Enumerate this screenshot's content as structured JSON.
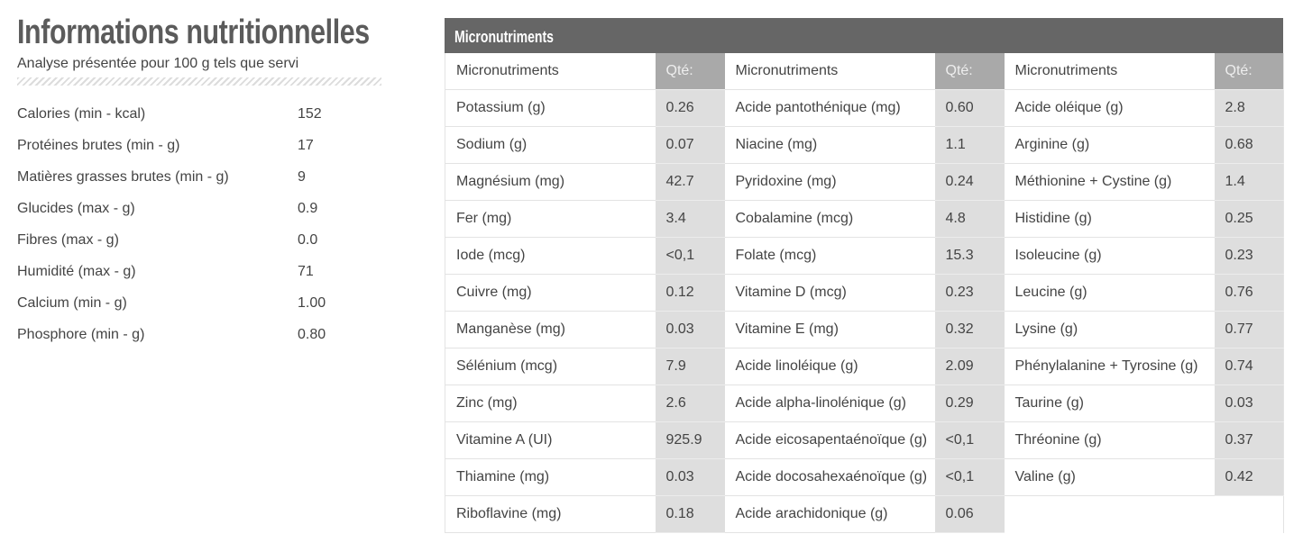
{
  "nutrition": {
    "title": "Informations nutritionnelles",
    "subtitle": "Analyse présentée pour 100 g tels que servi",
    "rows": [
      {
        "label": "Calories (min - kcal)",
        "value": "152"
      },
      {
        "label": "Protéines brutes (min - g)",
        "value": "17"
      },
      {
        "label": "Matières grasses brutes (min - g)",
        "value": "9"
      },
      {
        "label": "Glucides (max - g)",
        "value": "0.9"
      },
      {
        "label": "Fibres (max - g)",
        "value": "0.0"
      },
      {
        "label": "Humidité (max - g)",
        "value": "71"
      },
      {
        "label": "Calcium (min - g)",
        "value": "1.00"
      },
      {
        "label": "Phosphore (min - g)",
        "value": "0.80"
      }
    ]
  },
  "micro": {
    "title": "Micronutriments",
    "columns": [
      {
        "header_label": "Micronutriments",
        "header_qty": "Qté:",
        "rows": [
          {
            "label": "Potassium (g)",
            "value": "0.26"
          },
          {
            "label": "Sodium (g)",
            "value": "0.07"
          },
          {
            "label": "Magnésium (mg)",
            "value": "42.7"
          },
          {
            "label": "Fer (mg)",
            "value": "3.4"
          },
          {
            "label": "Iode (mcg)",
            "value": "<0,1"
          },
          {
            "label": "Cuivre (mg)",
            "value": "0.12"
          },
          {
            "label": "Manganèse (mg)",
            "value": "0.03"
          },
          {
            "label": "Sélénium (mcg)",
            "value": "7.9"
          },
          {
            "label": "Zinc (mg)",
            "value": "2.6"
          },
          {
            "label": "Vitamine A (UI)",
            "value": "925.9"
          },
          {
            "label": "Thiamine (mg)",
            "value": "0.03"
          },
          {
            "label": "Riboflavine (mg)",
            "value": "0.18"
          }
        ]
      },
      {
        "header_label": "Micronutriments",
        "header_qty": "Qté:",
        "rows": [
          {
            "label": "Acide pantothénique (mg)",
            "value": "0.60"
          },
          {
            "label": "Niacine (mg)",
            "value": "1.1"
          },
          {
            "label": "Pyridoxine (mg)",
            "value": "0.24"
          },
          {
            "label": "Cobalamine (mcg)",
            "value": "4.8"
          },
          {
            "label": "Folate (mcg)",
            "value": "15.3"
          },
          {
            "label": "Vitamine D (mcg)",
            "value": "0.23"
          },
          {
            "label": "Vitamine E (mg)",
            "value": "0.32"
          },
          {
            "label": "Acide linoléique (g)",
            "value": "2.09"
          },
          {
            "label": "Acide alpha-linolénique (g)",
            "value": "0.29"
          },
          {
            "label": "Acide eicosapentaénoïque (g)",
            "value": "<0,1"
          },
          {
            "label": "Acide docosahexaénoïque (g)",
            "value": "<0,1"
          },
          {
            "label": "Acide arachidonique (g)",
            "value": "0.06"
          }
        ]
      },
      {
        "header_label": "Micronutriments",
        "header_qty": "Qté:",
        "rows": [
          {
            "label": "Acide oléique (g)",
            "value": "2.8"
          },
          {
            "label": "Arginine (g)",
            "value": "0.68"
          },
          {
            "label": "Méthionine + Cystine (g)",
            "value": "1.4"
          },
          {
            "label": "Histidine (g)",
            "value": "0.25"
          },
          {
            "label": "Isoleucine (g)",
            "value": "0.23"
          },
          {
            "label": "Leucine (g)",
            "value": "0.76"
          },
          {
            "label": "Lysine (g)",
            "value": "0.77"
          },
          {
            "label": "Phénylalanine + Tyrosine (g)",
            "value": "0.74"
          },
          {
            "label": "Taurine (g)",
            "value": "0.03"
          },
          {
            "label": "Thréonine (g)",
            "value": "0.37"
          },
          {
            "label": "Valine (g)",
            "value": "0.42"
          }
        ]
      }
    ]
  }
}
